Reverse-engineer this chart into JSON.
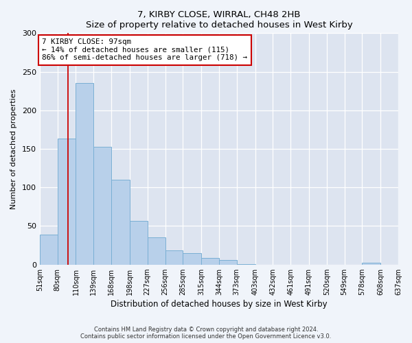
{
  "title": "7, KIRBY CLOSE, WIRRAL, CH48 2HB",
  "subtitle": "Size of property relative to detached houses in West Kirby",
  "xlabel": "Distribution of detached houses by size in West Kirby",
  "ylabel": "Number of detached properties",
  "bar_values": [
    39,
    163,
    235,
    153,
    110,
    57,
    35,
    18,
    15,
    9,
    6,
    1,
    0,
    0,
    0,
    0,
    0,
    0,
    2,
    0
  ],
  "bin_labels": [
    "51sqm",
    "80sqm",
    "110sqm",
    "139sqm",
    "168sqm",
    "198sqm",
    "227sqm",
    "256sqm",
    "285sqm",
    "315sqm",
    "344sqm",
    "373sqm",
    "403sqm",
    "432sqm",
    "461sqm",
    "491sqm",
    "520sqm",
    "549sqm",
    "578sqm",
    "608sqm",
    "637sqm"
  ],
  "bin_edges": [
    51,
    80,
    110,
    139,
    168,
    198,
    227,
    256,
    285,
    315,
    344,
    373,
    403,
    432,
    461,
    491,
    520,
    549,
    578,
    608,
    637
  ],
  "bar_color": "#b8d0ea",
  "bar_edge_color": "#7aafd4",
  "property_line_x": 97,
  "property_line_color": "#cc0000",
  "annotation_text": "7 KIRBY CLOSE: 97sqm\n← 14% of detached houses are smaller (115)\n86% of semi-detached houses are larger (718) →",
  "annotation_box_color": "#ffffff",
  "annotation_box_edge_color": "#cc0000",
  "ylim": [
    0,
    300
  ],
  "yticks": [
    0,
    50,
    100,
    150,
    200,
    250,
    300
  ],
  "plot_bg_color": "#dde4f0",
  "fig_bg_color": "#f0f4fa",
  "footer1": "Contains HM Land Registry data © Crown copyright and database right 2024.",
  "footer2": "Contains public sector information licensed under the Open Government Licence v3.0."
}
